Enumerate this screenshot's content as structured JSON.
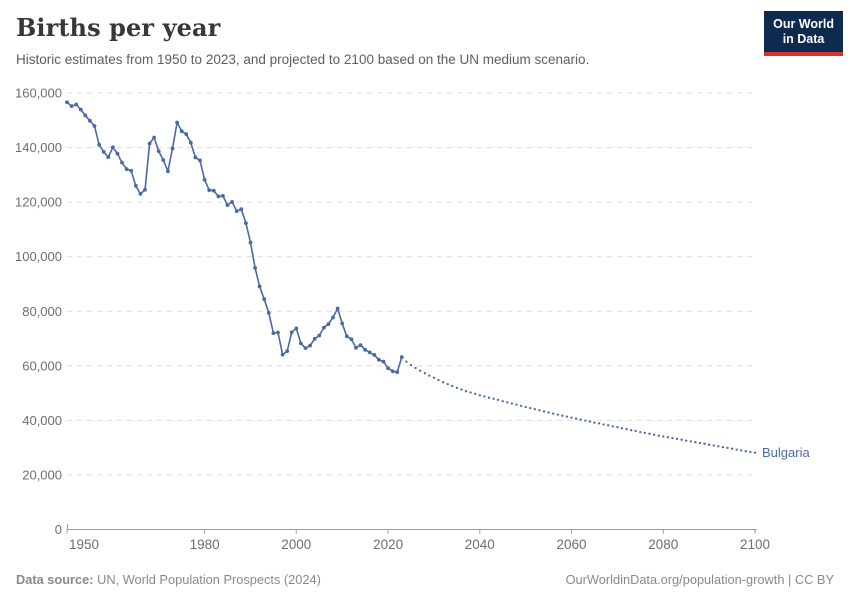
{
  "header": {
    "title": "Births per year",
    "subtitle": "Historic estimates from 1950 to 2023, and projected to 2100 based on the UN medium scenario.",
    "logo": {
      "line1": "Our World",
      "line2": "in Data",
      "bg_color": "#0e2a4e",
      "accent_color": "#d4342c"
    }
  },
  "footer": {
    "source_label": "Data source:",
    "source_text": "UN, World Population Prospects (2024)",
    "link_text": "OurWorldinData.org/population-growth | CC BY"
  },
  "chart_data": {
    "type": "line",
    "title": "Births per year",
    "entity_label": "Bulgaria",
    "line_color": "#4a69a2",
    "grid_color": "#dcdcdc",
    "axis_color": "#9b9b9b",
    "tick_label_color": "#6e6e6e",
    "grid": true,
    "legend_position": "end-of-line-label",
    "xlim": [
      1950,
      2100
    ],
    "ylim": [
      0,
      160000
    ],
    "x_ticks": [
      1950,
      1980,
      2000,
      2020,
      2040,
      2060,
      2080,
      2100
    ],
    "y_ticks": [
      0,
      20000,
      40000,
      60000,
      80000,
      100000,
      120000,
      140000,
      160000
    ],
    "series": [
      {
        "name": "historic-estimates",
        "style": "solid",
        "start_year": 1950,
        "values": [
          156600,
          155200,
          155800,
          153900,
          151800,
          149800,
          147900,
          141100,
          138400,
          136500,
          140100,
          137800,
          134500,
          132100,
          131500,
          126000,
          123000,
          124500,
          141500,
          143700,
          138700,
          135400,
          131300,
          139700,
          149200,
          146000,
          144900,
          141800,
          136400,
          135300,
          128200,
          124400,
          124200,
          122100,
          122300,
          118900,
          120100,
          116700,
          117400,
          112300,
          105200,
          95900,
          89100,
          84400,
          79400,
          72000,
          72200,
          64100,
          65400,
          72300,
          73700,
          68200,
          66500,
          67400,
          69900,
          71100,
          74000,
          75300,
          77700,
          81000,
          75500,
          70800,
          69700,
          66600,
          67600,
          65900,
          64900,
          64000,
          62200,
          61500,
          59100,
          58000,
          57700,
          63200
        ]
      },
      {
        "name": "un-medium-scenario-projection",
        "style": "dotted",
        "start_year": 2023,
        "values": [
          63200,
          61500,
          60300,
          59200,
          58200,
          57300,
          56400,
          55600,
          54800,
          54000,
          53300,
          52600,
          51900,
          51300,
          50700,
          50200,
          49700,
          49200,
          48800,
          48300,
          47900,
          47500,
          47000,
          46600,
          46200,
          45800,
          45300,
          44900,
          44500,
          44100,
          43700,
          43300,
          42900,
          42500,
          42100,
          41700,
          41400,
          41000,
          40600,
          40300,
          39900,
          39600,
          39200,
          38900,
          38500,
          38200,
          37800,
          37500,
          37100,
          36800,
          36400,
          36100,
          35700,
          35400,
          35100,
          34700,
          34400,
          34100,
          33800,
          33500,
          33200,
          32900,
          32600,
          32300,
          32000,
          31700,
          31400,
          31100,
          30800,
          30500,
          30200,
          29900,
          29600,
          29300,
          29000,
          28700,
          28400,
          28200
        ]
      }
    ]
  }
}
